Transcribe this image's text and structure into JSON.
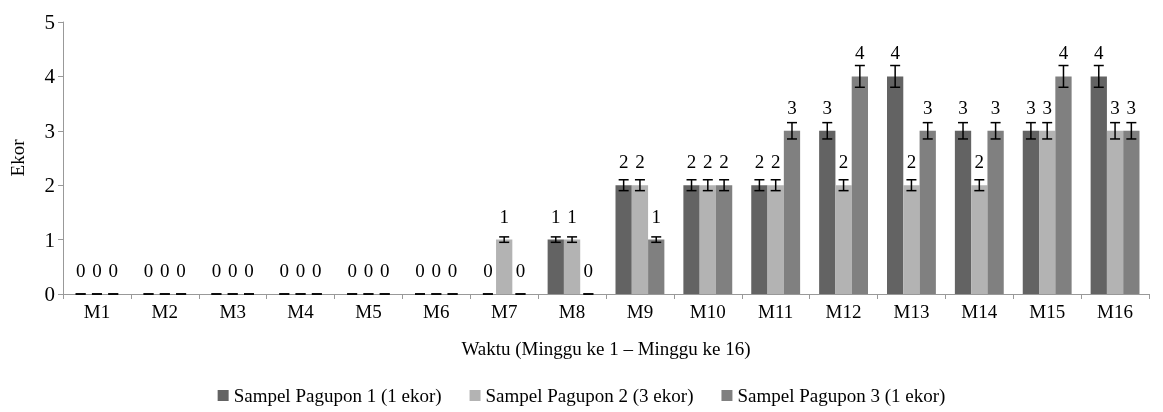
{
  "chart_data": {
    "type": "bar",
    "xlabel": "Waktu (Minggu ke 1 – Minggu ke 16)",
    "ylabel": "Ekor",
    "categories": [
      "M1",
      "M2",
      "M3",
      "M4",
      "M5",
      "M6",
      "M7",
      "M8",
      "M9",
      "M10",
      "M11",
      "M12",
      "M13",
      "M14",
      "M15",
      "M16"
    ],
    "series": [
      {
        "name": "Sampel Pagupon 1 (1 ekor)",
        "color": "#636363",
        "values": [
          0,
          0,
          0,
          0,
          0,
          0,
          0,
          1,
          2,
          2,
          2,
          3,
          4,
          3,
          3,
          4
        ],
        "errors": [
          0,
          0,
          0,
          0,
          0,
          0,
          0,
          0.05,
          0.1,
          0.1,
          0.1,
          0.15,
          0.2,
          0.15,
          0.15,
          0.2
        ]
      },
      {
        "name": "Sampel Pagupon 2 (3 ekor)",
        "color": "#b3b3b3",
        "values": [
          0,
          0,
          0,
          0,
          0,
          0,
          1,
          1,
          2,
          2,
          2,
          2,
          2,
          2,
          3,
          3
        ],
        "errors": [
          0,
          0,
          0,
          0,
          0,
          0,
          0.05,
          0.05,
          0.1,
          0.1,
          0.1,
          0.1,
          0.1,
          0.1,
          0.15,
          0.15
        ]
      },
      {
        "name": "Sampel Pagupon 3 (1 ekor)",
        "color": "#808080",
        "values": [
          0,
          0,
          0,
          0,
          0,
          0,
          0,
          0,
          1,
          2,
          3,
          4,
          3,
          3,
          4,
          3
        ],
        "errors": [
          0,
          0,
          0,
          0,
          0,
          0,
          0,
          0,
          0.05,
          0.1,
          0.15,
          0.2,
          0.15,
          0.15,
          0.2,
          0.15
        ]
      }
    ],
    "ylim": [
      0,
      5
    ],
    "yticks": [
      0,
      1,
      2,
      3,
      4,
      5
    ],
    "grid": false,
    "legend": "bottom",
    "data_labels": true
  }
}
